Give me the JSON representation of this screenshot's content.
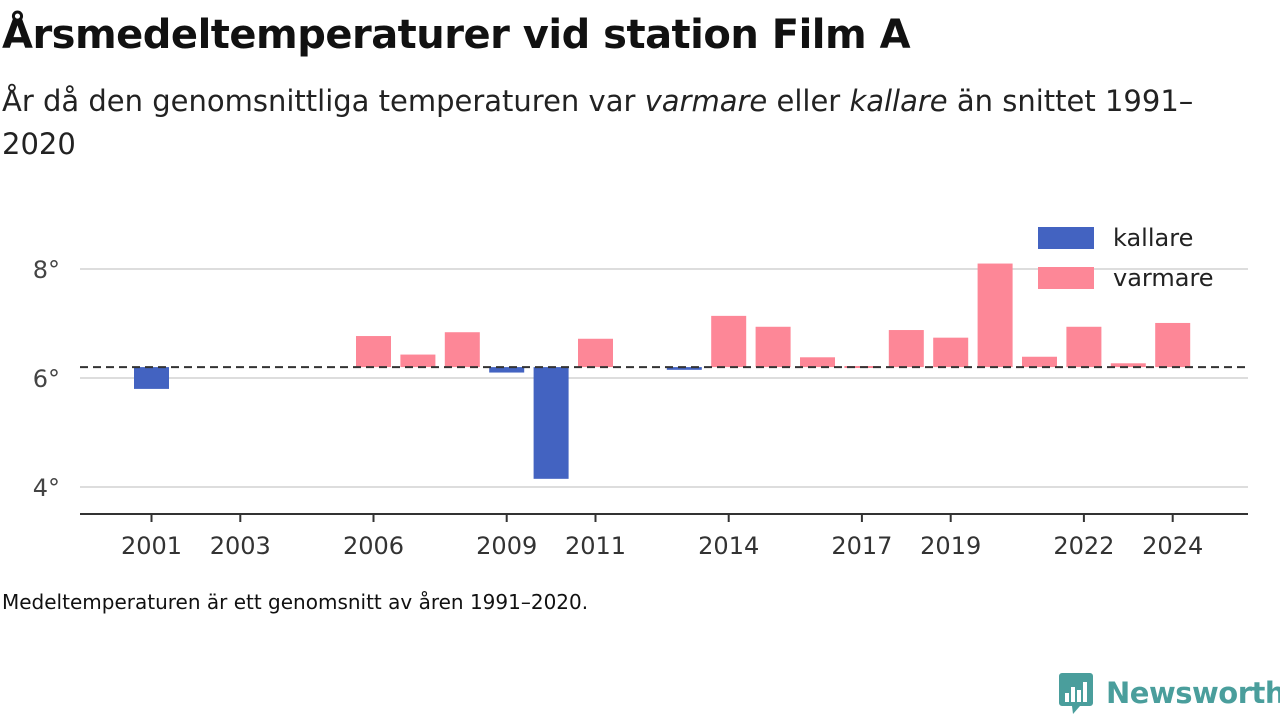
{
  "header": {
    "title": "Årsmedeltemperaturer vid station Film A",
    "subtitle_prefix": "År då den genomsnittliga temperaturen var ",
    "subtitle_warm": "varmare",
    "subtitle_mid": " eller ",
    "subtitle_cold": "kallare",
    "subtitle_suffix": " än snittet 1991–2020"
  },
  "footnote": "Medeltemperaturen är ett genomsnitt av åren 1991–2020.",
  "brand": {
    "name": "Newsworthy",
    "icon": "newsworthy-logo-icon"
  },
  "colors": {
    "colder": "#4363c1",
    "warmer": "#fd8797",
    "grid": "#dddddd",
    "axis": "#333333",
    "brand": "#4a9e9c"
  },
  "chart_data": {
    "type": "bar",
    "title": "Årsmedeltemperaturer vid station Film A",
    "baseline": 6.2,
    "baseline_style": "dashed",
    "ylim": [
      3.5,
      9.1
    ],
    "yticks": [
      4,
      6,
      8
    ],
    "ytick_labels": [
      "4°",
      "6°",
      "8°"
    ],
    "xticks": [
      2001,
      2003,
      2006,
      2009,
      2011,
      2014,
      2017,
      2019,
      2022,
      2024
    ],
    "grid": true,
    "legend": {
      "position": "top-right",
      "entries": [
        {
          "name": "kallare",
          "color": "#4363c1"
        },
        {
          "name": "varmare",
          "color": "#fd8797"
        }
      ]
    },
    "series": [
      {
        "name": "kallare",
        "color": "#4363c1",
        "points": [
          {
            "x": 2001,
            "y": 5.8
          },
          {
            "x": 2009,
            "y": 6.1
          },
          {
            "x": 2010,
            "y": 4.15
          },
          {
            "x": 2013,
            "y": 6.15
          }
        ]
      },
      {
        "name": "varmare",
        "color": "#fd8797",
        "points": [
          {
            "x": 2006,
            "y": 6.77
          },
          {
            "x": 2007,
            "y": 6.43
          },
          {
            "x": 2008,
            "y": 6.84
          },
          {
            "x": 2011,
            "y": 6.72
          },
          {
            "x": 2014,
            "y": 7.14
          },
          {
            "x": 2015,
            "y": 6.94
          },
          {
            "x": 2016,
            "y": 6.38
          },
          {
            "x": 2017,
            "y": 6.22
          },
          {
            "x": 2018,
            "y": 6.88
          },
          {
            "x": 2019,
            "y": 6.74
          },
          {
            "x": 2020,
            "y": 8.1
          },
          {
            "x": 2021,
            "y": 6.39
          },
          {
            "x": 2022,
            "y": 6.94
          },
          {
            "x": 2023,
            "y": 6.27
          },
          {
            "x": 2024,
            "y": 7.01
          }
        ]
      }
    ]
  }
}
